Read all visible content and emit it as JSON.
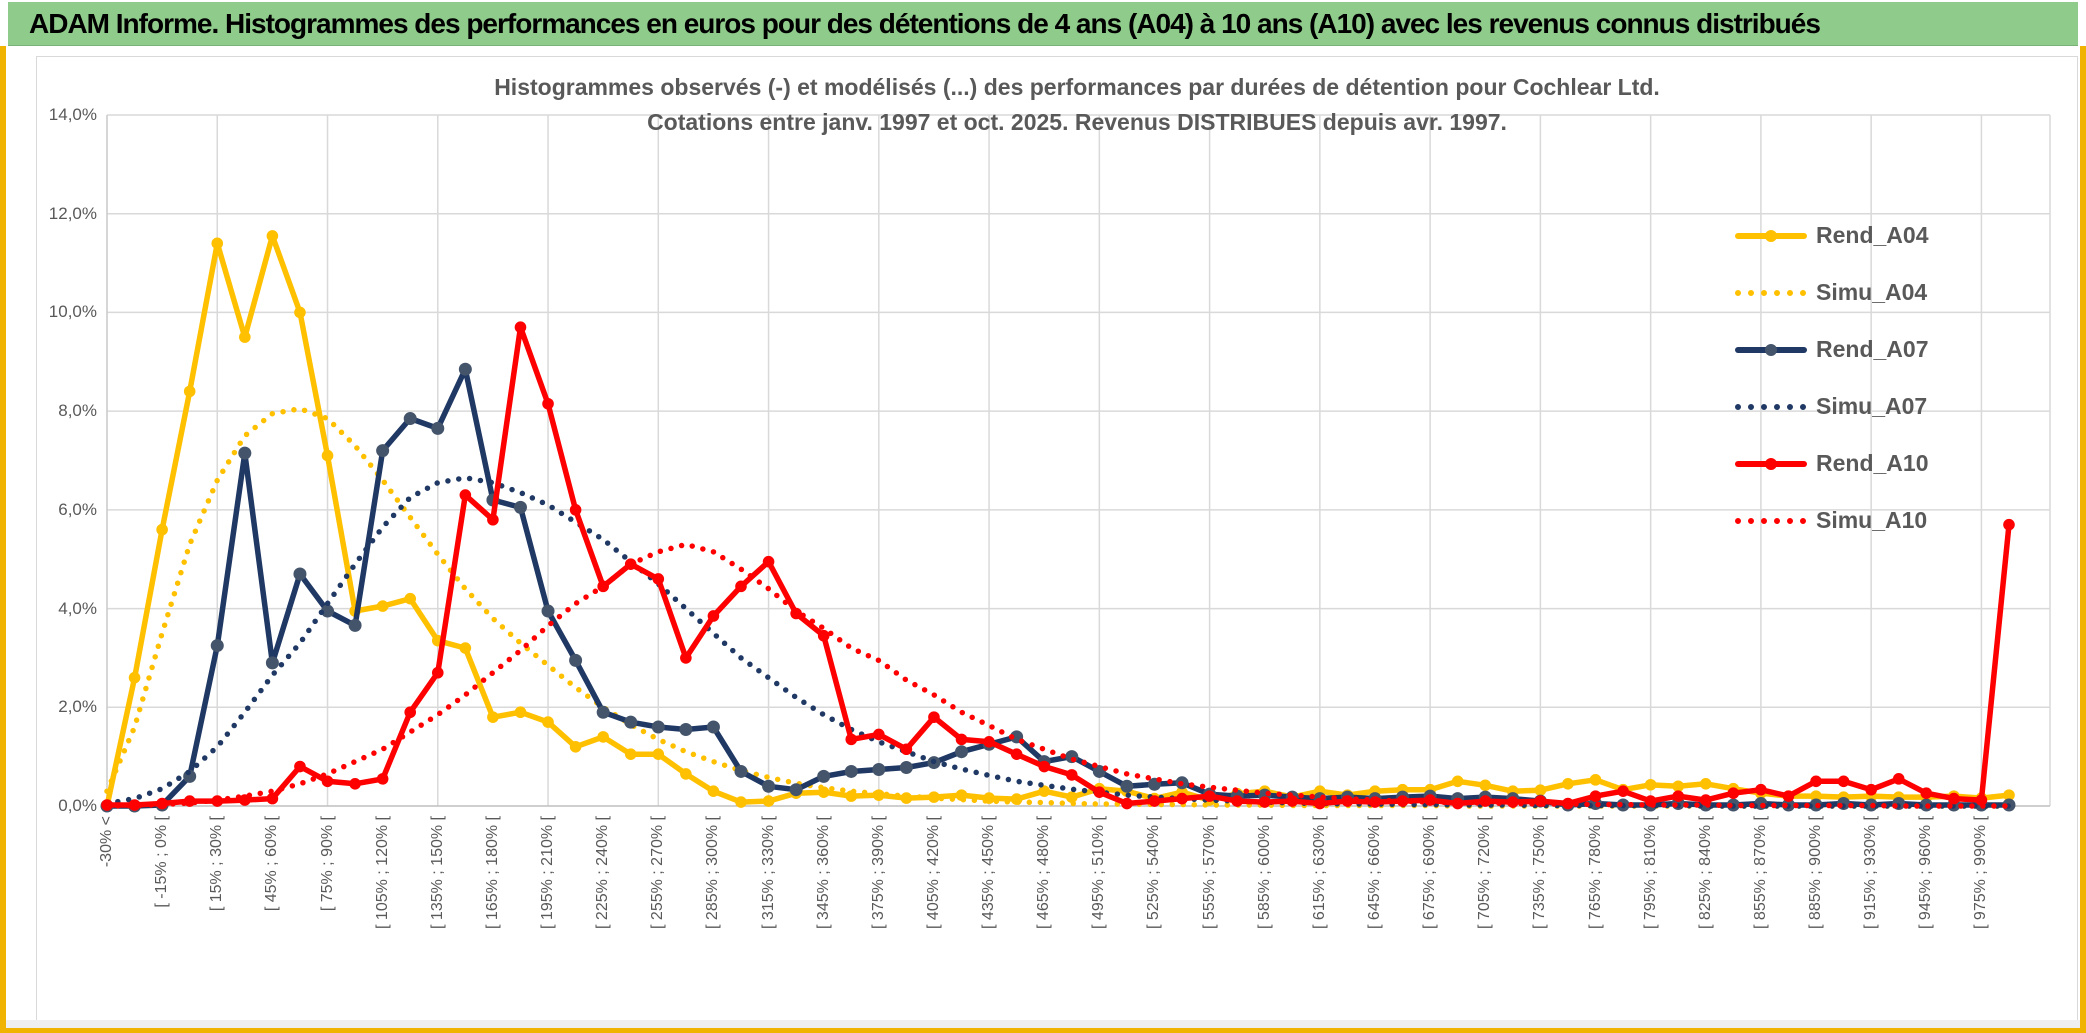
{
  "banner": {
    "title": "ADAM Informe. Histogrammes des performances en euros pour des détentions de 4 ans (A04) à 10 ans (A10) avec les revenus connus distribués"
  },
  "chart": {
    "title_line1": "Histogrammes observés (-) et modélisés (...) des performances par durées de détention pour Cochlear Ltd.",
    "title_line2": "Cotations entre janv. 1997 et oct. 2025. Revenus DISTRIBUES depuis avr. 1997."
  },
  "colors": {
    "banner_green": "#8FCB8B",
    "frame_gold": "#F0B400",
    "series_gold": "#FFC000",
    "series_navy": "#1F3864",
    "navy_marker": "#44546A",
    "series_red": "#FF0000",
    "text_gray": "#595959",
    "gridline": "#D9D9D9"
  },
  "chart_data": {
    "type": "line",
    "title": "Histogrammes observés (-) et modélisés (...) des performances par durées de détention pour Cochlear Ltd.",
    "subtitle": "Cotations entre janv. 1997 et oct. 2025. Revenus DISTRIBUES depuis avr. 1997.",
    "grid": true,
    "legend_position": "inside-right",
    "y_axis": {
      "min": 0,
      "max": 14,
      "unit": "percent frequency",
      "tick_labels": [
        "0,0%",
        "2,0%",
        "4,0%",
        "6,0%",
        "8,0%",
        "10,0%",
        "12,0%",
        "14,0%"
      ]
    },
    "x_axis": {
      "n_bins": 70,
      "bin_width_pct": 15,
      "ticks_every_n_bins": 2,
      "tick_labels": [
        "-30% <",
        "[ -15% ; 0% [",
        "[ 15% ; 30% [",
        "[ 45% ; 60% [",
        "[ 75% ; 90% [",
        "[ 105% ; 120% [",
        "[ 135% ; 150% [",
        "[ 165% ; 180% [",
        "[ 195% ; 210% [",
        "[ 225% ; 240% [",
        "[ 255% ; 270% [",
        "[ 285% ; 300% [",
        "[ 315% ; 330% [",
        "[ 345% ; 360% [",
        "[ 375% ; 390% [",
        "[ 405% ; 420% [",
        "[ 435% ; 450% [",
        "[ 465% ; 480% [",
        "[ 495% ; 510% [",
        "[ 525% ; 540% [",
        "[ 555% ; 570% [",
        "[ 585% ; 600% [",
        "[ 615% ; 630% [",
        "[ 645% ; 660% [",
        "[ 675% ; 690% [",
        "[ 705% ; 720% [",
        "[ 735% ; 750% [",
        "[ 765% ; 780% [",
        "[ 795% ; 810% [",
        "[ 825% ; 840% [",
        "[ 855% ; 870% [",
        "[ 885% ; 900% [",
        "[ 915% ; 930% [",
        "[ 945% ; 960% [",
        "[ 975% ; 990% ["
      ]
    },
    "series": [
      {
        "name": "Rend_A04",
        "style": "solid",
        "color": "#FFC000",
        "marker_color": "#FFC000",
        "values": [
          0,
          2.6,
          5.6,
          8.4,
          11.4,
          9.5,
          11.55,
          10.0,
          7.1,
          3.95,
          4.05,
          4.2,
          3.35,
          3.2,
          1.8,
          1.9,
          1.7,
          1.2,
          1.4,
          1.05,
          1.05,
          0.65,
          0.3,
          0.08,
          0.1,
          0.26,
          0.28,
          0.2,
          0.22,
          0.16,
          0.18,
          0.22,
          0.16,
          0.14,
          0.3,
          0.18,
          0.35,
          0.3,
          0.15,
          0.28,
          0.12,
          0.25,
          0.3,
          0.18,
          0.3,
          0.22,
          0.3,
          0.33,
          0.33,
          0.5,
          0.42,
          0.3,
          0.32,
          0.45,
          0.53,
          0.33,
          0.43,
          0.4,
          0.45,
          0.35,
          0.26,
          0.2,
          0.2,
          0.18,
          0.2,
          0.18,
          0.18,
          0.2,
          0.16,
          0.22
        ]
      },
      {
        "name": "Simu_A04",
        "style": "dotted",
        "color": "#FFC000",
        "marker_color": "#FFC000",
        "values": [
          0.3,
          1.6,
          3.5,
          5.3,
          6.6,
          7.5,
          7.95,
          8.05,
          7.85,
          7.3,
          6.6,
          5.85,
          5.1,
          4.4,
          3.8,
          3.3,
          2.85,
          2.4,
          2.0,
          1.65,
          1.35,
          1.1,
          0.9,
          0.72,
          0.58,
          0.46,
          0.37,
          0.3,
          0.25,
          0.2,
          0.16,
          0.13,
          0.1,
          0.08,
          0.07,
          0.05,
          0.04,
          0.04,
          0.03,
          0.03,
          0.02,
          0.02,
          0.02,
          0.01,
          0.01,
          0.01,
          0.01,
          0.01,
          0.01,
          0,
          0,
          0,
          0,
          0,
          0,
          0,
          0,
          0,
          0,
          0,
          0,
          0,
          0,
          0,
          0,
          0,
          0,
          0,
          0,
          0
        ]
      },
      {
        "name": "Rend_A07",
        "style": "solid",
        "color": "#1F3864",
        "marker_color": "#44546A",
        "values": [
          0,
          0,
          0.02,
          0.6,
          3.25,
          7.15,
          2.9,
          4.7,
          3.95,
          3.66,
          7.2,
          7.85,
          7.65,
          8.85,
          6.2,
          6.05,
          3.95,
          2.95,
          1.9,
          1.7,
          1.6,
          1.55,
          1.6,
          0.7,
          0.4,
          0.33,
          0.6,
          0.7,
          0.74,
          0.78,
          0.88,
          1.1,
          1.25,
          1.4,
          0.9,
          1.0,
          0.7,
          0.4,
          0.44,
          0.47,
          0.24,
          0.2,
          0.22,
          0.18,
          0.15,
          0.18,
          0.15,
          0.18,
          0.2,
          0.15,
          0.18,
          0.15,
          0.1,
          0.02,
          0.05,
          0.02,
          0.02,
          0.05,
          0.02,
          0.02,
          0.05,
          0.02,
          0.02,
          0.05,
          0.02,
          0.05,
          0.02,
          0.02,
          0.02,
          0.02
        ]
      },
      {
        "name": "Simu_A07",
        "style": "dotted",
        "color": "#1F3864",
        "marker_color": "#1F3864",
        "values": [
          0.05,
          0.15,
          0.35,
          0.7,
          1.2,
          1.9,
          2.65,
          3.3,
          4.1,
          4.9,
          5.65,
          6.25,
          6.55,
          6.65,
          6.55,
          6.35,
          6.1,
          5.75,
          5.4,
          4.95,
          4.5,
          4.0,
          3.5,
          3.0,
          2.6,
          2.2,
          1.85,
          1.55,
          1.3,
          1.1,
          0.9,
          0.75,
          0.62,
          0.5,
          0.42,
          0.34,
          0.28,
          0.22,
          0.18,
          0.15,
          0.12,
          0.1,
          0.08,
          0.06,
          0.05,
          0.04,
          0.04,
          0.03,
          0.03,
          0.02,
          0.02,
          0.02,
          0.01,
          0.01,
          0.01,
          0.01,
          0.01,
          0.01,
          0,
          0,
          0,
          0,
          0,
          0,
          0,
          0,
          0,
          0,
          0,
          0
        ]
      },
      {
        "name": "Rend_A10",
        "style": "solid",
        "color": "#FF0000",
        "marker_color": "#FF0000",
        "values": [
          0.02,
          0.02,
          0.05,
          0.1,
          0.1,
          0.12,
          0.15,
          0.8,
          0.5,
          0.45,
          0.55,
          1.9,
          2.7,
          6.3,
          5.8,
          9.7,
          8.15,
          6.0,
          4.45,
          4.9,
          4.6,
          3.0,
          3.85,
          4.45,
          4.95,
          3.9,
          3.45,
          1.35,
          1.45,
          1.15,
          1.8,
          1.35,
          1.3,
          1.05,
          0.8,
          0.63,
          0.28,
          0.05,
          0.1,
          0.15,
          0.2,
          0.1,
          0.08,
          0.1,
          0.05,
          0.1,
          0.08,
          0.1,
          0.12,
          0.05,
          0.1,
          0.08,
          0.1,
          0.05,
          0.2,
          0.3,
          0.1,
          0.2,
          0.12,
          0.26,
          0.33,
          0.2,
          0.5,
          0.5,
          0.33,
          0.55,
          0.26,
          0.15,
          0.12,
          5.7
        ]
      },
      {
        "name": "Simu_A10",
        "style": "dotted",
        "color": "#FF0000",
        "marker_color": "#FF0000",
        "values": [
          0,
          0.01,
          0.03,
          0.06,
          0.12,
          0.2,
          0.3,
          0.45,
          0.65,
          0.9,
          1.15,
          1.5,
          1.85,
          2.25,
          2.7,
          3.15,
          3.65,
          4.1,
          4.45,
          4.9,
          5.15,
          5.3,
          5.15,
          4.8,
          4.4,
          3.95,
          3.6,
          3.2,
          2.95,
          2.55,
          2.25,
          1.9,
          1.63,
          1.35,
          1.15,
          0.95,
          0.8,
          0.65,
          0.55,
          0.45,
          0.38,
          0.32,
          0.26,
          0.22,
          0.18,
          0.15,
          0.12,
          0.1,
          0.08,
          0.07,
          0.06,
          0.05,
          0.04,
          0.04,
          0.03,
          0.03,
          0.02,
          0.02,
          0.02,
          0.01,
          0.01,
          0.01,
          0.01,
          0.01,
          0.01,
          0,
          0,
          0,
          0,
          0
        ]
      }
    ]
  }
}
